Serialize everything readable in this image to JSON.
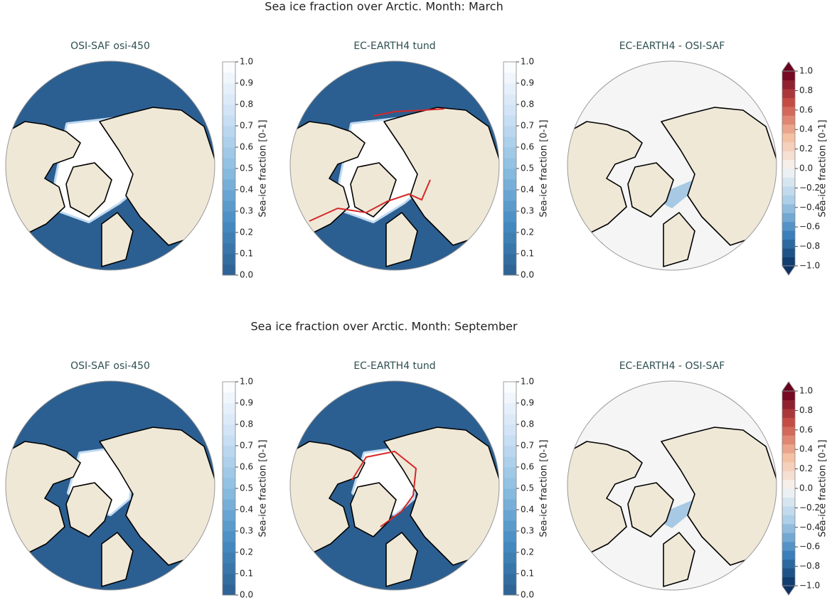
{
  "rows": [
    {
      "title": "Sea ice fraction over Arctic. Month: March",
      "panels": [
        {
          "title": "OSI-SAF osi-450",
          "cmap": "Blues_r",
          "extend": "neither",
          "colorbar": {
            "label": "Sea-ice fraction [0-1]",
            "lim": [
              0,
              1
            ],
            "ticks": [
              {
                "value": 0,
                "label": "0.0"
              },
              {
                "value": 0.1,
                "label": "0.1"
              },
              {
                "value": 0.2,
                "label": "0.2"
              },
              {
                "value": 0.3,
                "label": "0.3"
              },
              {
                "value": 0.4,
                "label": "0.4"
              },
              {
                "value": 0.5,
                "label": "0.5"
              },
              {
                "value": 0.6,
                "label": "0.6"
              },
              {
                "value": 0.7,
                "label": "0.7"
              },
              {
                "value": 0.8,
                "label": "0.8"
              },
              {
                "value": 0.9,
                "label": "0.9"
              },
              {
                "value": 1,
                "label": "1.0"
              }
            ]
          }
        },
        {
          "title": "EC-EARTH4 tund",
          "cmap": "Blues_r",
          "extend": "neither",
          "colorbar": {
            "label": "Sea-ice fraction [0-1]",
            "lim": [
              0,
              1
            ],
            "ticks": [
              {
                "value": 0,
                "label": "0.0"
              },
              {
                "value": 0.1,
                "label": "0.1"
              },
              {
                "value": 0.2,
                "label": "0.2"
              },
              {
                "value": 0.3,
                "label": "0.3"
              },
              {
                "value": 0.4,
                "label": "0.4"
              },
              {
                "value": 0.5,
                "label": "0.5"
              },
              {
                "value": 0.6,
                "label": "0.6"
              },
              {
                "value": 0.7,
                "label": "0.7"
              },
              {
                "value": 0.8,
                "label": "0.8"
              },
              {
                "value": 0.9,
                "label": "0.9"
              },
              {
                "value": 1,
                "label": "1.0"
              }
            ]
          }
        },
        {
          "title": "EC-EARTH4 -  OSI-SAF",
          "cmap": "RdBu_r",
          "extend": "both",
          "colorbar": {
            "label": "Sea-ice fraction [0-1]",
            "lim": [
              -1,
              1
            ],
            "ticks": [
              {
                "value": -1,
                "label": "−1.0"
              },
              {
                "value": -0.8,
                "label": "−0.8"
              },
              {
                "value": -0.6,
                "label": "−0.6"
              },
              {
                "value": -0.4,
                "label": "−0.4"
              },
              {
                "value": -0.2,
                "label": "−0.2"
              },
              {
                "value": 0,
                "label": "0.0"
              },
              {
                "value": 0.2,
                "label": "0.2"
              },
              {
                "value": 0.4,
                "label": "0.4"
              },
              {
                "value": 0.6,
                "label": "0.6"
              },
              {
                "value": 0.8,
                "label": "0.8"
              },
              {
                "value": 1,
                "label": "1.0"
              }
            ]
          }
        }
      ]
    },
    {
      "title": "Sea ice fraction over Arctic. Month: September",
      "panels": [
        {
          "title": "OSI-SAF osi-450",
          "cmap": "Blues_r",
          "extend": "neither",
          "colorbar": {
            "label": "Sea-ice fraction [0-1]",
            "lim": [
              0,
              1
            ],
            "ticks": [
              {
                "value": 0,
                "label": "0.0"
              },
              {
                "value": 0.1,
                "label": "0.1"
              },
              {
                "value": 0.2,
                "label": "0.2"
              },
              {
                "value": 0.3,
                "label": "0.3"
              },
              {
                "value": 0.4,
                "label": "0.4"
              },
              {
                "value": 0.5,
                "label": "0.5"
              },
              {
                "value": 0.6,
                "label": "0.6"
              },
              {
                "value": 0.7,
                "label": "0.7"
              },
              {
                "value": 0.8,
                "label": "0.8"
              },
              {
                "value": 0.9,
                "label": "0.9"
              },
              {
                "value": 1,
                "label": "1.0"
              }
            ]
          }
        },
        {
          "title": "EC-EARTH4 tund",
          "cmap": "Blues_r",
          "extend": "neither",
          "colorbar": {
            "label": "Sea-ice fraction [0-1]",
            "lim": [
              0,
              1
            ],
            "ticks": [
              {
                "value": 0,
                "label": "0.0"
              },
              {
                "value": 0.1,
                "label": "0.1"
              },
              {
                "value": 0.2,
                "label": "0.2"
              },
              {
                "value": 0.3,
                "label": "0.3"
              },
              {
                "value": 0.4,
                "label": "0.4"
              },
              {
                "value": 0.5,
                "label": "0.5"
              },
              {
                "value": 0.6,
                "label": "0.6"
              },
              {
                "value": 0.7,
                "label": "0.7"
              },
              {
                "value": 0.8,
                "label": "0.8"
              },
              {
                "value": 0.9,
                "label": "0.9"
              },
              {
                "value": 1,
                "label": "1.0"
              }
            ]
          }
        },
        {
          "title": "EC-EARTH4 -  OSI-SAF",
          "cmap": "RdBu_r",
          "extend": "both",
          "colorbar": {
            "label": "Sea-ice fraction [0-1]",
            "lim": [
              -1,
              1
            ],
            "ticks": [
              {
                "value": -1,
                "label": "−1.0"
              },
              {
                "value": -0.8,
                "label": "−0.8"
              },
              {
                "value": -0.6,
                "label": "−0.6"
              },
              {
                "value": -0.4,
                "label": "−0.4"
              },
              {
                "value": -0.2,
                "label": "−0.2"
              },
              {
                "value": 0,
                "label": "0.0"
              },
              {
                "value": 0.2,
                "label": "0.2"
              },
              {
                "value": 0.4,
                "label": "0.4"
              },
              {
                "value": 0.6,
                "label": "0.6"
              },
              {
                "value": 0.8,
                "label": "0.8"
              },
              {
                "value": 1,
                "label": "1.0"
              }
            ]
          }
        }
      ]
    }
  ]
}
